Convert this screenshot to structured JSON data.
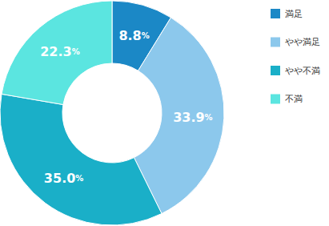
{
  "chart_data": {
    "type": "donut",
    "categories": [
      "満足",
      "やや満足",
      "やや不満",
      "不満"
    ],
    "values": [
      8.8,
      33.9,
      35.0,
      22.3
    ],
    "value_labels": [
      "8.8%",
      "33.9%",
      "35.0%",
      "22.3%"
    ],
    "colors": [
      "#1b88c6",
      "#8cc8ec",
      "#1aafc8",
      "#5be5e0"
    ],
    "data_labels": true,
    "legend": "right"
  }
}
